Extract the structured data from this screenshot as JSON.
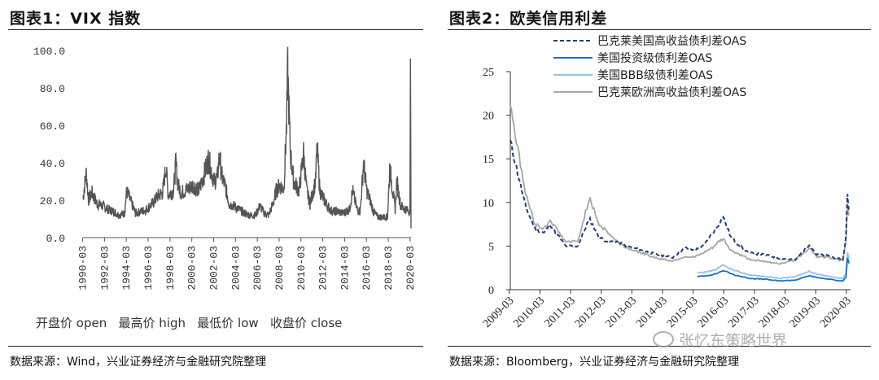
{
  "left": {
    "title": "图表1：VIX 指数",
    "source": "数据来源：Wind，兴业证券经济与金融研究院整理",
    "legend_line": "开盘价 open   最高价 high   最低价 low   收盘价 close"
  },
  "right": {
    "title": "图表2：欧美信用利差",
    "source": "数据来源：Bloomberg，兴业证券经济与金融研究院整理"
  },
  "watermark": "张忆东策略世界",
  "chart_data": [
    {
      "type": "line",
      "title": "图表1：VIX 指数",
      "xlabel": "",
      "ylabel": "",
      "xlim": [
        1990.2,
        2020.25
      ],
      "ylim": [
        0,
        100
      ],
      "y_ticks": [
        "0.0",
        "20.0",
        "40.0",
        "60.0",
        "80.0",
        "100.0"
      ],
      "x_ticks": [
        "1990-03",
        "1992-03",
        "1994-03",
        "1996-03",
        "1998-03",
        "2000-03",
        "2002-03",
        "2004-03",
        "2006-03",
        "2008-03",
        "2010-03",
        "2012-03",
        "2014-03",
        "2016-03",
        "2018-03",
        "2020-03"
      ],
      "grid": false,
      "legend": [
        "开盘价 open",
        "最高价 high",
        "最低价 low",
        "收盘价 close"
      ],
      "legend_position": "bottom",
      "color": "#555555",
      "series": [
        {
          "name": "VIX",
          "x": [
            1990.2,
            1990.5,
            1990.7,
            1991.0,
            1991.5,
            1992.0,
            1992.5,
            1993.0,
            1993.5,
            1994.0,
            1994.2,
            1995.0,
            1996.0,
            1996.7,
            1997.0,
            1997.5,
            1997.8,
            1998.0,
            1998.5,
            1998.7,
            1998.9,
            1999.2,
            1999.8,
            2000.3,
            2000.8,
            2001.2,
            2001.7,
            2002.2,
            2002.5,
            2002.7,
            2002.9,
            2003.2,
            2003.6,
            2004.0,
            2004.5,
            2005.0,
            2005.5,
            2006.0,
            2006.4,
            2006.8,
            2007.2,
            2007.6,
            2007.9,
            2008.2,
            2008.6,
            2008.85,
            2008.95,
            2009.2,
            2009.5,
            2010.0,
            2010.4,
            2010.7,
            2011.0,
            2011.5,
            2011.65,
            2011.9,
            2012.3,
            2012.7,
            2013.0,
            2013.5,
            2014.0,
            2014.6,
            2014.9,
            2015.3,
            2015.6,
            2015.9,
            2016.2,
            2016.5,
            2016.8,
            2017.2,
            2017.6,
            2017.9,
            2018.1,
            2018.3,
            2018.8,
            2018.95,
            2019.3,
            2019.8,
            2020.05,
            2020.15,
            2020.2,
            2020.25
          ],
          "values": [
            21,
            35,
            20,
            24,
            18,
            17,
            15,
            14,
            12,
            13,
            25,
            13,
            15,
            19,
            22,
            24,
            38,
            23,
            25,
            40,
            28,
            24,
            26,
            28,
            25,
            32,
            42,
            30,
            32,
            44,
            33,
            28,
            18,
            17,
            15,
            13,
            12,
            12,
            17,
            13,
            12,
            18,
            25,
            28,
            26,
            60,
            89,
            45,
            30,
            25,
            45,
            25,
            18,
            30,
            48,
            25,
            20,
            16,
            14,
            14,
            13,
            15,
            25,
            15,
            14,
            40,
            25,
            20,
            14,
            11,
            11,
            11,
            11,
            37,
            15,
            30,
            17,
            15,
            14,
            15,
            85,
            5
          ]
        }
      ]
    },
    {
      "type": "line",
      "title": "图表2：欧美信用利差",
      "xlabel": "",
      "ylabel": "",
      "xlim": [
        2009.2,
        2020.3
      ],
      "ylim": [
        0,
        25
      ],
      "y_ticks": [
        0,
        5,
        10,
        15,
        20,
        25
      ],
      "x_ticks": [
        "2009-03",
        "2010-03",
        "2011-03",
        "2012-03",
        "2013-03",
        "2014-03",
        "2015-03",
        "2016-03",
        "2017-03",
        "2018-03",
        "2019-03",
        "2020-03"
      ],
      "grid": false,
      "legend_position": "top",
      "series": [
        {
          "name": "巴克莱美国高收益债利差OAS",
          "color": "#1f3f77",
          "style": "dashed",
          "x": [
            2009.2,
            2009.4,
            2009.7,
            2010.0,
            2010.3,
            2010.5,
            2010.8,
            2011.0,
            2011.4,
            2011.7,
            2011.8,
            2012.1,
            2012.4,
            2012.7,
            2013.0,
            2013.5,
            2014.0,
            2014.5,
            2014.9,
            2015.2,
            2015.5,
            2015.8,
            2016.0,
            2016.15,
            2016.4,
            2016.7,
            2017.0,
            2017.5,
            2018.0,
            2018.5,
            2018.95,
            2019.2,
            2019.6,
            2019.9,
            2020.05,
            2020.15,
            2020.2,
            2020.25
          ],
          "values": [
            17.0,
            14.0,
            9.5,
            7.0,
            6.5,
            7.5,
            6.0,
            5.0,
            5.0,
            7.5,
            8.0,
            6.0,
            5.5,
            5.5,
            5.0,
            4.5,
            4.0,
            3.7,
            4.8,
            4.5,
            5.0,
            6.5,
            7.5,
            8.3,
            6.0,
            5.0,
            4.2,
            4.0,
            3.6,
            3.4,
            5.2,
            4.0,
            3.9,
            3.5,
            3.5,
            6.0,
            10.8,
            9.0
          ]
        },
        {
          "name": "美国投资级债利差OAS",
          "color": "#1e6fbf",
          "style": "solid",
          "x": [
            2015.3,
            2015.6,
            2015.9,
            2016.15,
            2016.5,
            2017.0,
            2017.5,
            2018.0,
            2018.5,
            2018.95,
            2019.2,
            2019.8,
            2020.05,
            2020.15,
            2020.2,
            2020.25
          ],
          "values": [
            1.5,
            1.6,
            1.8,
            2.2,
            1.7,
            1.3,
            1.2,
            1.0,
            1.1,
            1.6,
            1.4,
            1.1,
            1.0,
            1.4,
            3.7,
            3.0
          ]
        },
        {
          "name": "美国BBB级债利差OAS",
          "color": "#8ec3ea",
          "style": "solid",
          "x": [
            2015.3,
            2015.6,
            2015.9,
            2016.15,
            2016.5,
            2017.0,
            2017.5,
            2018.0,
            2018.5,
            2018.95,
            2019.2,
            2019.8,
            2020.05,
            2020.15,
            2020.2,
            2020.25
          ],
          "values": [
            1.9,
            2.0,
            2.3,
            2.8,
            2.2,
            1.7,
            1.5,
            1.3,
            1.5,
            2.1,
            1.8,
            1.4,
            1.3,
            1.9,
            4.3,
            3.6
          ]
        },
        {
          "name": "巴克莱欧洲高收益债利差OAS",
          "color": "#a6a6a6",
          "style": "solid",
          "x": [
            2009.2,
            2009.4,
            2009.7,
            2010.0,
            2010.3,
            2010.5,
            2010.8,
            2011.0,
            2011.4,
            2011.7,
            2011.8,
            2012.1,
            2012.4,
            2012.7,
            2013.0,
            2013.5,
            2014.0,
            2014.5,
            2014.9,
            2015.2,
            2015.5,
            2015.8,
            2016.0,
            2016.15,
            2016.4,
            2016.7,
            2017.0,
            2017.5,
            2018.0,
            2018.5,
            2018.95,
            2019.2,
            2019.6,
            2019.9,
            2020.05,
            2020.15,
            2020.2,
            2020.25
          ],
          "values": [
            21.5,
            17.0,
            11.0,
            7.5,
            7.0,
            8.0,
            6.5,
            5.5,
            5.5,
            9.5,
            10.3,
            7.5,
            6.5,
            5.5,
            4.8,
            4.2,
            3.6,
            3.3,
            3.8,
            3.7,
            4.2,
            4.8,
            5.5,
            5.8,
            4.5,
            4.0,
            3.5,
            3.2,
            3.0,
            3.4,
            4.8,
            3.8,
            3.7,
            3.4,
            3.4,
            5.5,
            9.5,
            8.5
          ]
        }
      ]
    }
  ]
}
